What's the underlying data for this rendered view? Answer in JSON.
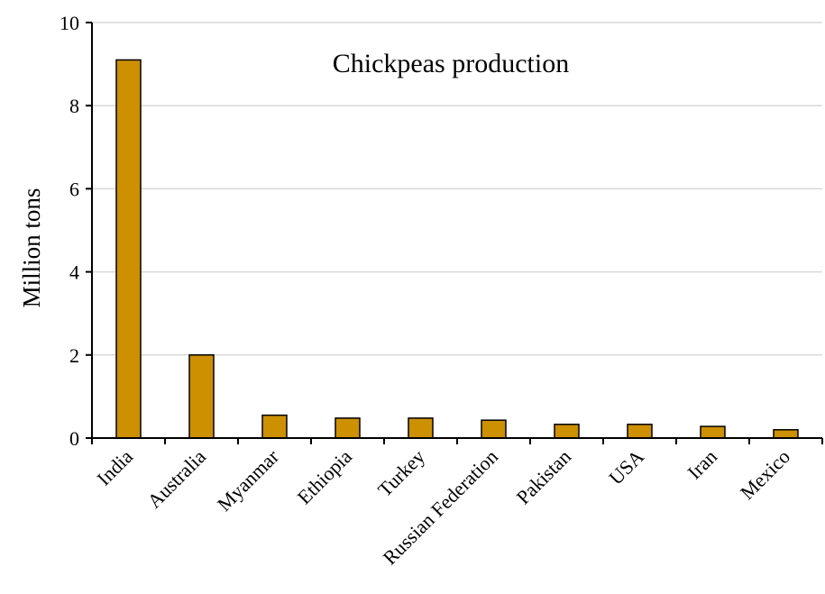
{
  "chart_data": {
    "type": "bar",
    "title": "Chickpeas production",
    "xlabel": "",
    "ylabel": "Million tons",
    "ylim": [
      0,
      10
    ],
    "yticks": [
      0,
      2,
      4,
      6,
      8,
      10
    ],
    "grid": true,
    "categories": [
      "India",
      "Australia",
      "Myanmar",
      "Ethiopia",
      "Turkey",
      "Russian Federation",
      "Pakistan",
      "USA",
      "Iran",
      "Mexico"
    ],
    "values": [
      9.1,
      2.0,
      0.55,
      0.48,
      0.48,
      0.43,
      0.33,
      0.33,
      0.28,
      0.2
    ],
    "colors": {
      "bar": "#CC9000",
      "bar_stroke": "#000000",
      "grid": "#d9d9d9",
      "axis": "#000000"
    }
  }
}
